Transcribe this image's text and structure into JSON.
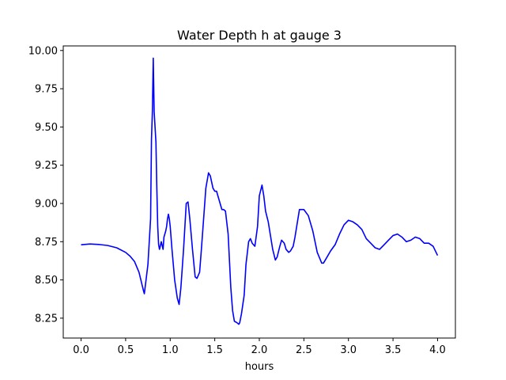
{
  "chart_data": {
    "type": "line",
    "title": "Water Depth h at gauge 3",
    "xlabel": "hours",
    "ylabel": "",
    "xlim": [
      -0.2,
      4.2
    ],
    "ylim": [
      8.12,
      10.03
    ],
    "grid": false,
    "x_ticks": [
      0.0,
      0.5,
      1.0,
      1.5,
      2.0,
      2.5,
      3.0,
      3.5,
      4.0
    ],
    "x_tick_labels": [
      "0.0",
      "0.5",
      "1.0",
      "1.5",
      "2.0",
      "2.5",
      "3.0",
      "3.5",
      "4.0"
    ],
    "y_ticks": [
      8.25,
      8.5,
      8.75,
      9.0,
      9.25,
      9.5,
      9.75,
      10.0
    ],
    "y_tick_labels": [
      "8.25",
      "8.50",
      "8.75",
      "9.00",
      "9.25",
      "9.50",
      "9.75",
      "10.00"
    ],
    "series": [
      {
        "color": "#0000ff",
        "x": [
          0.0,
          0.1,
          0.2,
          0.3,
          0.4,
          0.5,
          0.55,
          0.6,
          0.65,
          0.7,
          0.71,
          0.75,
          0.78,
          0.79,
          0.8,
          0.81,
          0.82,
          0.84,
          0.85,
          0.86,
          0.87,
          0.88,
          0.9,
          0.92,
          0.93,
          0.94,
          0.95,
          0.96,
          0.97,
          0.98,
          0.99,
          1.0,
          1.02,
          1.05,
          1.08,
          1.1,
          1.12,
          1.15,
          1.18,
          1.2,
          1.22,
          1.25,
          1.28,
          1.3,
          1.33,
          1.35,
          1.4,
          1.43,
          1.45,
          1.48,
          1.5,
          1.52,
          1.55,
          1.58,
          1.6,
          1.62,
          1.65,
          1.68,
          1.7,
          1.72,
          1.75,
          1.77,
          1.78,
          1.8,
          1.83,
          1.85,
          1.88,
          1.9,
          1.92,
          1.95,
          1.98,
          2.0,
          2.03,
          2.05,
          2.07,
          2.1,
          2.15,
          2.18,
          2.2,
          2.23,
          2.25,
          2.28,
          2.3,
          2.33,
          2.35,
          2.38,
          2.4,
          2.45,
          2.5,
          2.55,
          2.6,
          2.65,
          2.7,
          2.72,
          2.75,
          2.8,
          2.85,
          2.9,
          2.95,
          3.0,
          3.05,
          3.1,
          3.15,
          3.2,
          3.25,
          3.3,
          3.35,
          3.4,
          3.45,
          3.5,
          3.55,
          3.6,
          3.65,
          3.7,
          3.75,
          3.8,
          3.85,
          3.9,
          3.95,
          4.0
        ],
        "y": [
          8.73,
          8.735,
          8.732,
          8.725,
          8.71,
          8.68,
          8.655,
          8.62,
          8.55,
          8.43,
          8.41,
          8.6,
          8.9,
          9.42,
          9.6,
          9.95,
          9.6,
          9.4,
          9.1,
          8.85,
          8.73,
          8.7,
          8.75,
          8.7,
          8.78,
          8.8,
          8.82,
          8.85,
          8.9,
          8.93,
          8.9,
          8.85,
          8.7,
          8.5,
          8.38,
          8.34,
          8.45,
          8.7,
          9.0,
          9.01,
          8.9,
          8.7,
          8.52,
          8.51,
          8.55,
          8.7,
          9.1,
          9.2,
          9.18,
          9.1,
          9.08,
          9.08,
          9.02,
          8.96,
          8.96,
          8.95,
          8.8,
          8.45,
          8.3,
          8.23,
          8.22,
          8.21,
          8.22,
          8.28,
          8.4,
          8.6,
          8.75,
          8.77,
          8.74,
          8.72,
          8.85,
          9.05,
          9.12,
          9.05,
          8.95,
          8.88,
          8.7,
          8.63,
          8.65,
          8.72,
          8.76,
          8.74,
          8.7,
          8.68,
          8.69,
          8.72,
          8.78,
          8.96,
          8.96,
          8.92,
          8.82,
          8.68,
          8.61,
          8.61,
          8.64,
          8.69,
          8.73,
          8.8,
          8.86,
          8.89,
          8.88,
          8.86,
          8.83,
          8.77,
          8.74,
          8.71,
          8.7,
          8.73,
          8.76,
          8.79,
          8.8,
          8.78,
          8.75,
          8.76,
          8.78,
          8.77,
          8.74,
          8.74,
          8.72,
          8.66
        ]
      }
    ]
  }
}
